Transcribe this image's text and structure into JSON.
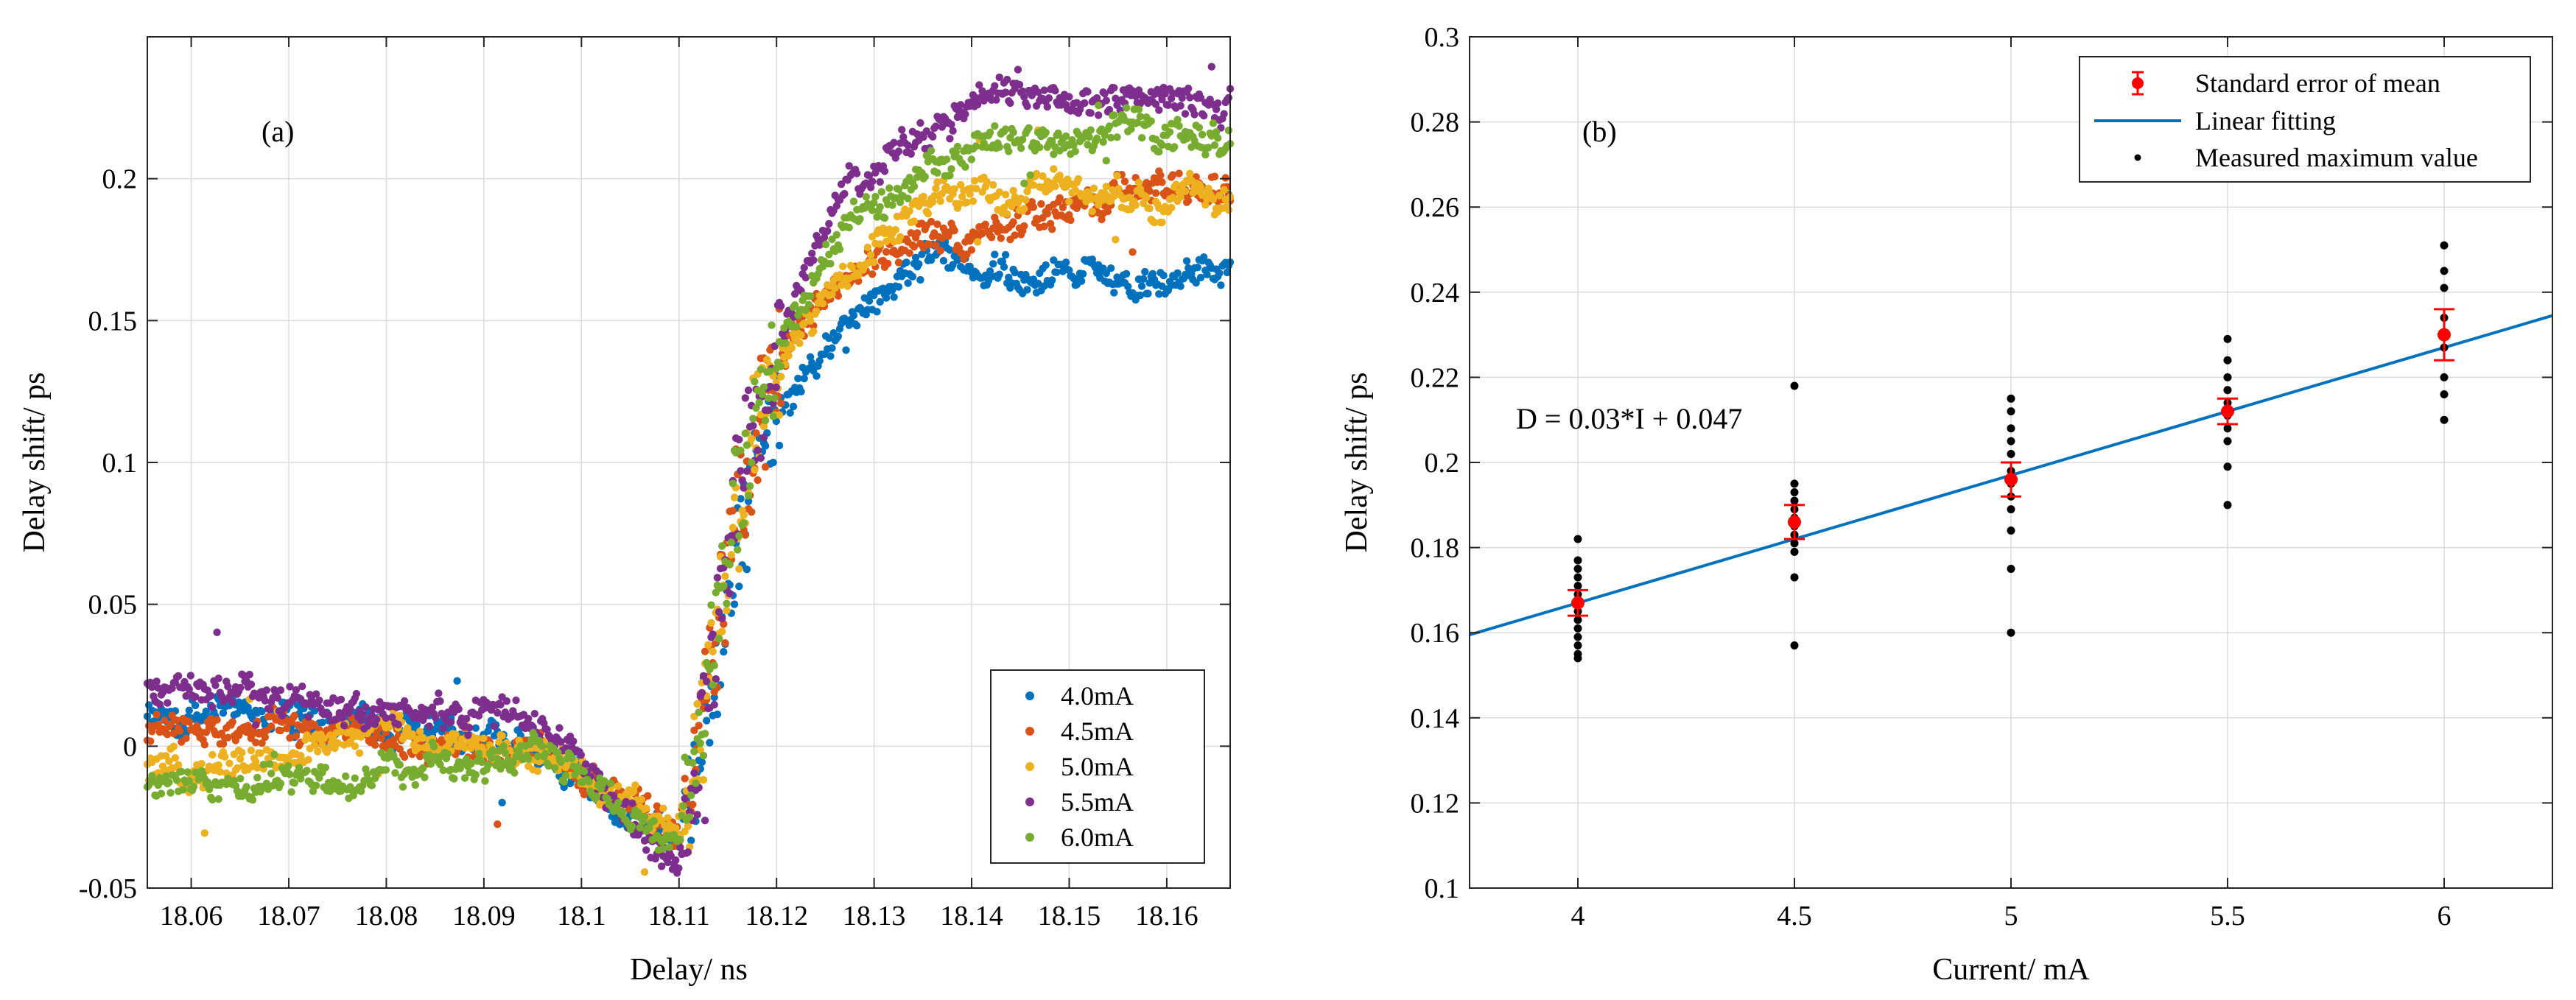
{
  "chart_data": [
    {
      "type": "scatter",
      "panel_label": "(a)",
      "xlabel": "Delay/ ns",
      "ylabel": "Delay shift/ ps",
      "xlim": [
        18.0555,
        18.1665
      ],
      "ylim": [
        -0.05,
        0.25
      ],
      "xticks": [
        18.06,
        18.07,
        18.08,
        18.09,
        18.1,
        18.11,
        18.12,
        18.13,
        18.14,
        18.15,
        18.16
      ],
      "xtick_labels": [
        "18.06",
        "18.07",
        "18.08",
        "18.09",
        "18.1",
        "18.11",
        "18.12",
        "18.13",
        "18.14",
        "18.15",
        "18.16"
      ],
      "yticks": [
        -0.05,
        0,
        0.05,
        0.1,
        0.15,
        0.2
      ],
      "ytick_labels": [
        "-0.05",
        "0",
        "0.05",
        "0.1",
        "0.15",
        "0.2"
      ],
      "grid": true,
      "legend_position": "bottom-right",
      "transition": {
        "start_x": 18.1105,
        "end_x": 18.1205
      },
      "series": [
        {
          "name": "4.0mA",
          "color": "#0072BD",
          "profile": [
            [
              18.0555,
              0.012
            ],
            [
              18.07,
              0.01
            ],
            [
              18.085,
              0.005
            ],
            [
              18.095,
              0.0
            ],
            [
              18.1,
              -0.01
            ],
            [
              18.105,
              -0.025
            ],
            [
              18.11,
              -0.03
            ],
            [
              18.112,
              0.0
            ],
            [
              18.114,
              0.03
            ],
            [
              18.116,
              0.07
            ],
            [
              18.118,
              0.1
            ],
            [
              18.12,
              0.12
            ],
            [
              18.123,
              0.13
            ],
            [
              18.126,
              0.145
            ],
            [
              18.13,
              0.155
            ],
            [
              18.133,
              0.17
            ],
            [
              18.136,
              0.175
            ],
            [
              18.14,
              0.17
            ],
            [
              18.145,
              0.163
            ],
            [
              18.15,
              0.165
            ],
            [
              18.155,
              0.165
            ],
            [
              18.16,
              0.163
            ],
            [
              18.1665,
              0.17
            ]
          ]
        },
        {
          "name": "4.5mA",
          "color": "#D95319",
          "profile": [
            [
              18.0555,
              0.005
            ],
            [
              18.07,
              0.005
            ],
            [
              18.085,
              0.002
            ],
            [
              18.095,
              0.0
            ],
            [
              18.1,
              -0.01
            ],
            [
              18.105,
              -0.02
            ],
            [
              18.11,
              -0.03
            ],
            [
              18.112,
              0.0
            ],
            [
              18.114,
              0.04
            ],
            [
              18.116,
              0.08
            ],
            [
              18.118,
              0.11
            ],
            [
              18.12,
              0.13
            ],
            [
              18.123,
              0.15
            ],
            [
              18.126,
              0.16
            ],
            [
              18.13,
              0.17
            ],
            [
              18.133,
              0.18
            ],
            [
              18.14,
              0.18
            ],
            [
              18.145,
              0.185
            ],
            [
              18.15,
              0.19
            ],
            [
              18.155,
              0.195
            ],
            [
              18.16,
              0.195
            ],
            [
              18.1665,
              0.195
            ]
          ]
        },
        {
          "name": "5.0mA",
          "color": "#EDB120",
          "profile": [
            [
              18.0555,
              -0.01
            ],
            [
              18.07,
              -0.005
            ],
            [
              18.08,
              0.008
            ],
            [
              18.09,
              0.0
            ],
            [
              18.1,
              -0.01
            ],
            [
              18.105,
              -0.02
            ],
            [
              18.11,
              -0.03
            ],
            [
              18.112,
              0.0
            ],
            [
              18.114,
              0.04
            ],
            [
              18.116,
              0.08
            ],
            [
              18.118,
              0.11
            ],
            [
              18.12,
              0.13
            ],
            [
              18.123,
              0.15
            ],
            [
              18.126,
              0.165
            ],
            [
              18.13,
              0.175
            ],
            [
              18.133,
              0.185
            ],
            [
              18.136,
              0.19
            ],
            [
              18.14,
              0.195
            ],
            [
              18.145,
              0.195
            ],
            [
              18.15,
              0.195
            ],
            [
              18.155,
              0.195
            ],
            [
              18.16,
              0.193
            ],
            [
              18.1665,
              0.195
            ]
          ]
        },
        {
          "name": "5.5mA",
          "color": "#7E2F8E",
          "profile": [
            [
              18.0555,
              0.02
            ],
            [
              18.065,
              0.018
            ],
            [
              18.075,
              0.014
            ],
            [
              18.085,
              0.012
            ],
            [
              18.095,
              0.008
            ],
            [
              18.1,
              -0.005
            ],
            [
              18.105,
              -0.03
            ],
            [
              18.11,
              -0.04
            ],
            [
              18.112,
              -0.01
            ],
            [
              18.114,
              0.04
            ],
            [
              18.116,
              0.09
            ],
            [
              18.118,
              0.12
            ],
            [
              18.12,
              0.14
            ],
            [
              18.123,
              0.165
            ],
            [
              18.126,
              0.19
            ],
            [
              18.13,
              0.205
            ],
            [
              18.135,
              0.215
            ],
            [
              18.14,
              0.225
            ],
            [
              18.145,
              0.232
            ],
            [
              18.15,
              0.228
            ],
            [
              18.155,
              0.226
            ],
            [
              18.16,
              0.227
            ],
            [
              18.1665,
              0.228
            ]
          ]
        },
        {
          "name": "6.0mA",
          "color": "#77AC30",
          "profile": [
            [
              18.0555,
              -0.015
            ],
            [
              18.065,
              -0.012
            ],
            [
              18.075,
              -0.012
            ],
            [
              18.085,
              -0.005
            ],
            [
              18.095,
              0.0
            ],
            [
              18.1,
              -0.01
            ],
            [
              18.105,
              -0.025
            ],
            [
              18.11,
              -0.035
            ],
            [
              18.112,
              0.0
            ],
            [
              18.114,
              0.05
            ],
            [
              18.116,
              0.09
            ],
            [
              18.118,
              0.12
            ],
            [
              18.12,
              0.14
            ],
            [
              18.123,
              0.16
            ],
            [
              18.126,
              0.175
            ],
            [
              18.13,
              0.19
            ],
            [
              18.135,
              0.2
            ],
            [
              18.14,
              0.21
            ],
            [
              18.145,
              0.215
            ],
            [
              18.15,
              0.21
            ],
            [
              18.155,
              0.22
            ],
            [
              18.16,
              0.215
            ],
            [
              18.1665,
              0.215
            ]
          ]
        }
      ]
    },
    {
      "type": "scatter",
      "panel_label": "(b)",
      "xlabel": "Current/ mA",
      "ylabel": "Delay shift/ ps",
      "xlim": [
        3.75,
        6.25
      ],
      "ylim": [
        0.1,
        0.3
      ],
      "xticks": [
        4,
        4.5,
        5,
        5.5,
        6
      ],
      "xtick_labels": [
        "4",
        "4.5",
        "5",
        "5.5",
        "6"
      ],
      "yticks": [
        0.1,
        0.12,
        0.14,
        0.16,
        0.18,
        0.2,
        0.22,
        0.24,
        0.26,
        0.28,
        0.3
      ],
      "ytick_labels": [
        "0.1",
        "0.12",
        "0.14",
        "0.16",
        "0.18",
        "0.2",
        "0.22",
        "0.24",
        "0.26",
        "0.28",
        "0.3"
      ],
      "grid": true,
      "legend_position": "top-right",
      "annotation": "D = 0.03*I + 0.047",
      "fit": {
        "name": "Linear fitting",
        "slope": 0.03,
        "intercept": 0.047,
        "color": "#0072BD"
      },
      "mean": {
        "name": "Standard error of mean",
        "color": "#FF0000",
        "x": [
          4,
          4.5,
          5,
          5.5,
          6
        ],
        "y": [
          0.167,
          0.186,
          0.196,
          0.212,
          0.23
        ],
        "err": [
          0.003,
          0.004,
          0.004,
          0.003,
          0.006
        ]
      },
      "measured": {
        "name": "Measured maximum value",
        "color": "#000000",
        "points": [
          [
            4,
            0.182
          ],
          [
            4,
            0.177
          ],
          [
            4,
            0.175
          ],
          [
            4,
            0.173
          ],
          [
            4,
            0.171
          ],
          [
            4,
            0.169
          ],
          [
            4,
            0.167
          ],
          [
            4,
            0.165
          ],
          [
            4,
            0.163
          ],
          [
            4,
            0.161
          ],
          [
            4,
            0.159
          ],
          [
            4,
            0.157
          ],
          [
            4,
            0.155
          ],
          [
            4,
            0.154
          ],
          [
            4.5,
            0.218
          ],
          [
            4.5,
            0.195
          ],
          [
            4.5,
            0.193
          ],
          [
            4.5,
            0.191
          ],
          [
            4.5,
            0.189
          ],
          [
            4.5,
            0.187
          ],
          [
            4.5,
            0.185
          ],
          [
            4.5,
            0.183
          ],
          [
            4.5,
            0.181
          ],
          [
            4.5,
            0.179
          ],
          [
            4.5,
            0.173
          ],
          [
            4.5,
            0.157
          ],
          [
            5,
            0.215
          ],
          [
            5,
            0.212
          ],
          [
            5,
            0.208
          ],
          [
            5,
            0.205
          ],
          [
            5,
            0.202
          ],
          [
            5,
            0.198
          ],
          [
            5,
            0.195
          ],
          [
            5,
            0.192
          ],
          [
            5,
            0.189
          ],
          [
            5,
            0.184
          ],
          [
            5,
            0.175
          ],
          [
            5,
            0.16
          ],
          [
            5.5,
            0.229
          ],
          [
            5.5,
            0.224
          ],
          [
            5.5,
            0.22
          ],
          [
            5.5,
            0.217
          ],
          [
            5.5,
            0.214
          ],
          [
            5.5,
            0.211
          ],
          [
            5.5,
            0.208
          ],
          [
            5.5,
            0.205
          ],
          [
            5.5,
            0.199
          ],
          [
            5.5,
            0.19
          ],
          [
            6,
            0.251
          ],
          [
            6,
            0.245
          ],
          [
            6,
            0.241
          ],
          [
            6,
            0.234
          ],
          [
            6,
            0.227
          ],
          [
            6,
            0.22
          ],
          [
            6,
            0.216
          ],
          [
            6,
            0.21
          ]
        ]
      }
    }
  ]
}
